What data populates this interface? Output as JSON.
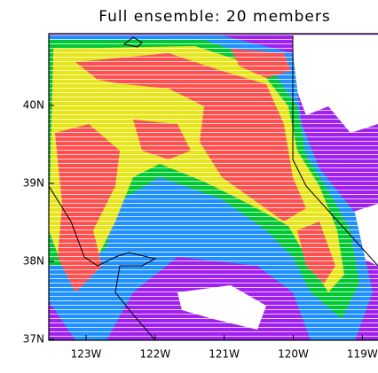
{
  "map": {
    "title": "Full ensemble: 20 members",
    "xlim": [
      -123.54,
      -118.76
    ],
    "ylim": [
      36.99,
      40.92
    ],
    "xticks": [
      {
        "value": -123,
        "label": "123W"
      },
      {
        "value": -122,
        "label": "122W"
      },
      {
        "value": -121,
        "label": "121W"
      },
      {
        "value": -120,
        "label": "120W"
      },
      {
        "value": -119,
        "label": "119W"
      }
    ],
    "yticks": [
      {
        "value": 37,
        "label": "37N"
      },
      {
        "value": 38,
        "label": "38N"
      },
      {
        "value": 39,
        "label": "39N"
      },
      {
        "value": 40,
        "label": "40N"
      }
    ]
  }
}
